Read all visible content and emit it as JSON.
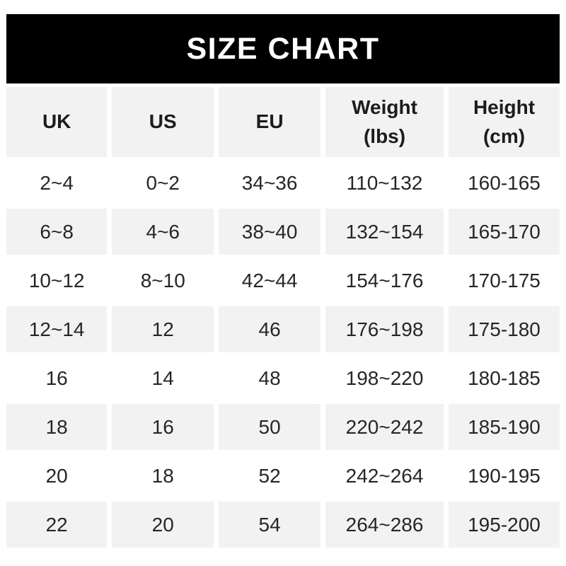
{
  "banner": {
    "title": "SIZE CHART",
    "background_color": "#000000",
    "text_color": "#ffffff"
  },
  "colors": {
    "page_background": "#ffffff",
    "stripe_gray": "#f2f2f2",
    "header_text": "#1c1c1c",
    "cell_text": "#262626"
  },
  "chart_data": {
    "type": "table",
    "title": "SIZE CHART",
    "legend_position": "none",
    "grid": "off",
    "layout": "header row gray; data rows alternate white then gray; white gutters between all cells",
    "columns": [
      {
        "title": "UK",
        "subtitle": ""
      },
      {
        "title": "US",
        "subtitle": ""
      },
      {
        "title": "EU",
        "subtitle": ""
      },
      {
        "title": "Weight",
        "subtitle": "(lbs)"
      },
      {
        "title": "Height",
        "subtitle": "(cm)"
      }
    ],
    "rows": [
      [
        "2~4",
        "0~2",
        "34~36",
        "110~132",
        "160-165"
      ],
      [
        "6~8",
        "4~6",
        "38~40",
        "132~154",
        "165-170"
      ],
      [
        "10~12",
        "8~10",
        "42~44",
        "154~176",
        "170-175"
      ],
      [
        "12~14",
        "12",
        "46",
        "176~198",
        "175-180"
      ],
      [
        "16",
        "14",
        "48",
        "198~220",
        "180-185"
      ],
      [
        "18",
        "16",
        "50",
        "220~242",
        "185-190"
      ],
      [
        "20",
        "18",
        "52",
        "242~264",
        "190-195"
      ],
      [
        "22",
        "20",
        "54",
        "264~286",
        "195-200"
      ]
    ]
  }
}
